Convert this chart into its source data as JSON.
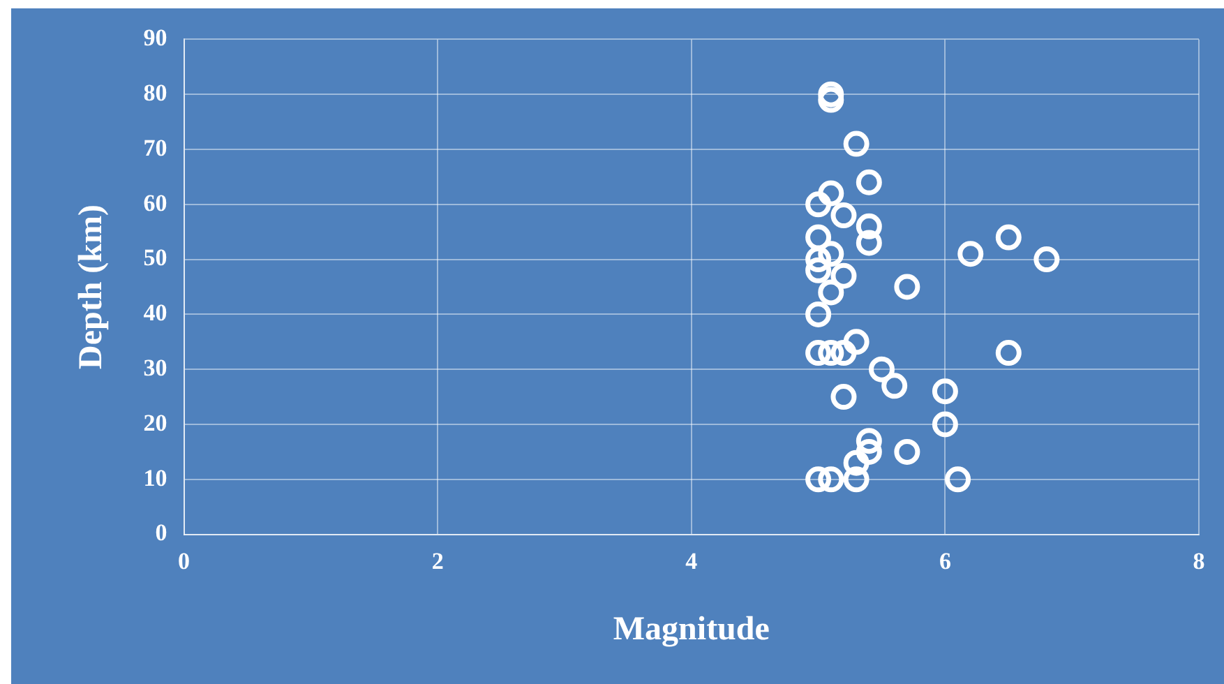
{
  "chart_data": {
    "type": "scatter",
    "xlabel": "Magnitude",
    "ylabel": "Depth (km)",
    "xlim": [
      0,
      8
    ],
    "xticks": [
      0,
      2,
      4,
      6,
      8
    ],
    "ylim": [
      0,
      90
    ],
    "yticks": [
      0,
      10,
      20,
      30,
      40,
      50,
      60,
      70,
      80,
      90
    ],
    "grid": true,
    "marker": "circle",
    "series": [
      {
        "color": "#ffffff",
        "x": [
          5.1,
          5.1,
          5.3,
          5.4,
          5.1,
          5.0,
          5.2,
          5.4,
          5.0,
          5.4,
          5.0,
          5.1,
          5.0,
          5.2,
          5.1,
          5.7,
          6.2,
          6.5,
          6.8,
          5.0,
          5.0,
          5.1,
          5.2,
          5.3,
          6.5,
          5.5,
          5.6,
          5.2,
          6.0,
          6.0,
          5.4,
          5.4,
          5.3,
          5.7,
          5.0,
          5.1,
          5.3,
          6.1
        ],
        "values": [
          80,
          79,
          71,
          64,
          62,
          60,
          58,
          56,
          54,
          53,
          50,
          51,
          48,
          47,
          44,
          45,
          51,
          54,
          50,
          40,
          33,
          33,
          33,
          35,
          33,
          30,
          27,
          25,
          26,
          20,
          17,
          15,
          13,
          15,
          10,
          10,
          10,
          10
        ]
      }
    ]
  }
}
